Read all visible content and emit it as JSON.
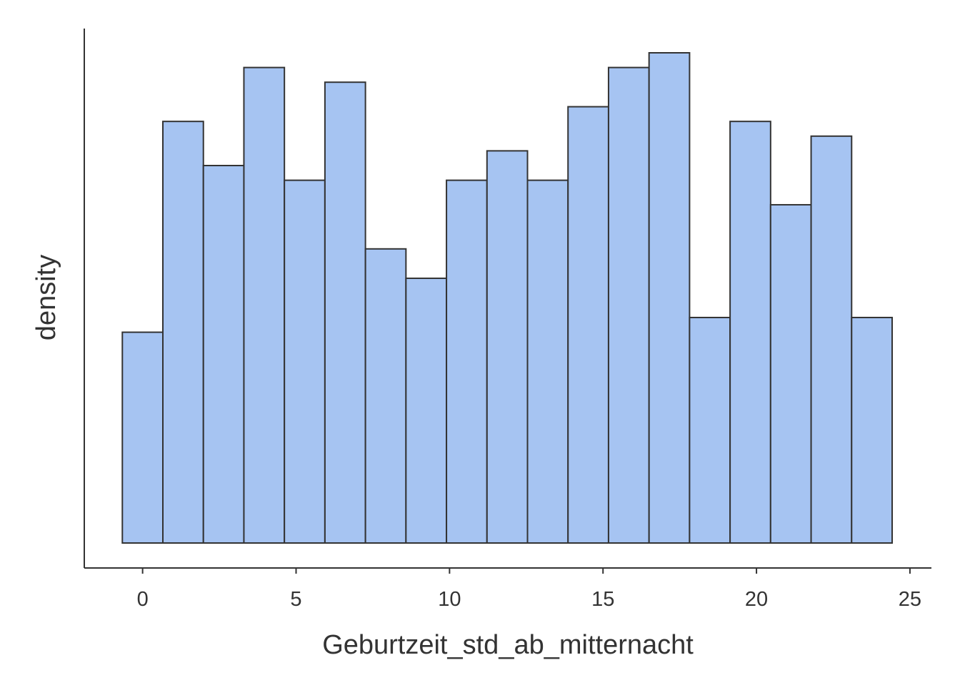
{
  "chart_data": {
    "type": "bar",
    "xlabel": "Geburtzeit_std_ab_mitternacht",
    "ylabel": "density",
    "xlim": [
      -1.9,
      25.7
    ],
    "ylim": [
      0,
      1.05
    ],
    "x_ticks": [
      0,
      5,
      10,
      15,
      20,
      25
    ],
    "y_ticks_shown": false,
    "grid": false,
    "bins": [
      {
        "x0": -0.66,
        "x1": 0.66,
        "value": 0.43
      },
      {
        "x0": 0.66,
        "x1": 1.98,
        "value": 0.86
      },
      {
        "x0": 1.98,
        "x1": 3.3,
        "value": 0.77
      },
      {
        "x0": 3.3,
        "x1": 4.62,
        "value": 0.97
      },
      {
        "x0": 4.62,
        "x1": 5.94,
        "value": 0.74
      },
      {
        "x0": 5.94,
        "x1": 7.26,
        "value": 0.94
      },
      {
        "x0": 7.26,
        "x1": 8.58,
        "value": 0.6
      },
      {
        "x0": 8.58,
        "x1": 9.9,
        "value": 0.54
      },
      {
        "x0": 9.9,
        "x1": 11.22,
        "value": 0.74
      },
      {
        "x0": 11.22,
        "x1": 12.54,
        "value": 0.8
      },
      {
        "x0": 12.54,
        "x1": 13.86,
        "value": 0.74
      },
      {
        "x0": 13.86,
        "x1": 15.18,
        "value": 0.89
      },
      {
        "x0": 15.18,
        "x1": 16.5,
        "value": 0.97
      },
      {
        "x0": 16.5,
        "x1": 17.82,
        "value": 1.0
      },
      {
        "x0": 17.82,
        "x1": 19.14,
        "value": 0.46
      },
      {
        "x0": 19.14,
        "x1": 20.46,
        "value": 0.86
      },
      {
        "x0": 20.46,
        "x1": 21.78,
        "value": 0.69
      },
      {
        "x0": 21.78,
        "x1": 23.1,
        "value": 0.83
      },
      {
        "x0": 23.1,
        "x1": 24.42,
        "value": 0.46
      }
    ],
    "colors": {
      "bar_fill": "#a6c4f2",
      "bar_stroke": "#333333",
      "axis": "#333333"
    }
  }
}
